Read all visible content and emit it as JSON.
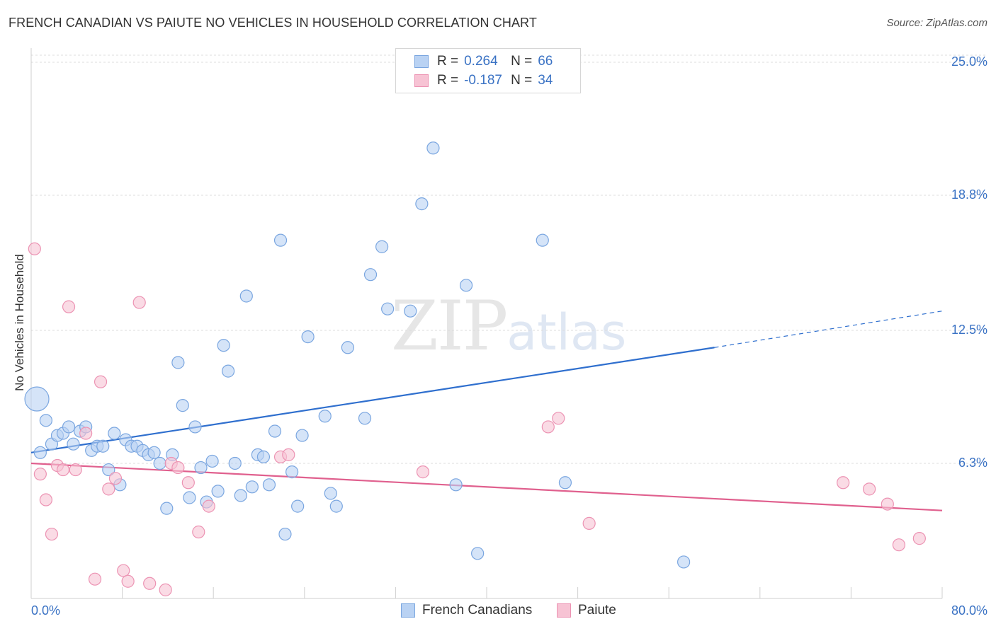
{
  "header": {
    "title": "FRENCH CANADIAN VS PAIUTE NO VEHICLES IN HOUSEHOLD CORRELATION CHART",
    "source": "Source: ZipAtlas.com"
  },
  "watermark": {
    "zip": "ZIP",
    "atlas": "atlas"
  },
  "legend_top": [
    {
      "r_label": "R =",
      "r_value": "0.264",
      "n_label": "N =",
      "n_value": "66"
    },
    {
      "r_label": "R =",
      "r_value": "-0.187",
      "n_label": "N =",
      "n_value": "34"
    }
  ],
  "legend_bottom": [
    "French Canadians",
    "Paiute"
  ],
  "colors": {
    "blue_fill": "#b9d2f3",
    "blue_stroke": "#7aa6e0",
    "blue_line": "#2f6fce",
    "pink_fill": "#f7c3d4",
    "pink_stroke": "#ec93b3",
    "pink_line": "#e0608e",
    "tick_text": "#3a72c4",
    "grid": "#dcdcdc"
  },
  "chart_data": {
    "type": "scatter",
    "title": "FRENCH CANADIAN VS PAIUTE NO VEHICLES IN HOUSEHOLD CORRELATION CHART",
    "xlabel": "",
    "ylabel": "No Vehicles in Household",
    "xlim": [
      0,
      80
    ],
    "ylim": [
      0,
      25
    ],
    "x_tick_labels": [
      "0.0%",
      "80.0%"
    ],
    "y_ticks": [
      6.3,
      12.5,
      18.8,
      25.0
    ],
    "y_tick_labels": [
      "6.3%",
      "12.5%",
      "18.8%",
      "25.0%"
    ],
    "series": [
      {
        "name": "French Canadians",
        "color": "#b9d2f3",
        "r": 0.264,
        "n": 66,
        "trend": {
          "x0": 0,
          "y0": 6.8,
          "x1": 60,
          "y1": 11.7,
          "dash_x1": 80,
          "dash_y1": 13.4
        },
        "points": [
          [
            0.5,
            9.3,
            "large"
          ],
          [
            0.8,
            6.8
          ],
          [
            1.3,
            8.3
          ],
          [
            1.8,
            7.2
          ],
          [
            2.3,
            7.6
          ],
          [
            2.8,
            7.7
          ],
          [
            3.3,
            8.0
          ],
          [
            3.7,
            7.2
          ],
          [
            4.3,
            7.8
          ],
          [
            4.8,
            8.0
          ],
          [
            5.3,
            6.9
          ],
          [
            5.8,
            7.1
          ],
          [
            6.3,
            7.1
          ],
          [
            6.8,
            6.0
          ],
          [
            7.3,
            7.7
          ],
          [
            7.8,
            5.3
          ],
          [
            8.3,
            7.4
          ],
          [
            8.8,
            7.1
          ],
          [
            9.3,
            7.1
          ],
          [
            9.8,
            6.9
          ],
          [
            10.3,
            6.7
          ],
          [
            10.8,
            6.8
          ],
          [
            11.3,
            6.3
          ],
          [
            11.9,
            4.2
          ],
          [
            12.4,
            6.7
          ],
          [
            12.9,
            11.0
          ],
          [
            13.3,
            9.0
          ],
          [
            13.9,
            4.7
          ],
          [
            14.4,
            8.0
          ],
          [
            14.9,
            6.1
          ],
          [
            15.4,
            4.5
          ],
          [
            15.9,
            6.4
          ],
          [
            16.4,
            5.0
          ],
          [
            16.9,
            11.8
          ],
          [
            17.3,
            10.6
          ],
          [
            17.9,
            6.3
          ],
          [
            18.4,
            4.8
          ],
          [
            18.9,
            14.1
          ],
          [
            19.4,
            5.2
          ],
          [
            19.9,
            6.7
          ],
          [
            20.4,
            6.6
          ],
          [
            20.9,
            5.3
          ],
          [
            21.4,
            7.8
          ],
          [
            21.9,
            16.7
          ],
          [
            22.3,
            3.0
          ],
          [
            22.9,
            5.9
          ],
          [
            23.4,
            4.3
          ],
          [
            23.8,
            7.6
          ],
          [
            24.3,
            12.2
          ],
          [
            25.8,
            8.5
          ],
          [
            26.3,
            4.9
          ],
          [
            26.8,
            4.3
          ],
          [
            27.8,
            11.7
          ],
          [
            29.3,
            8.4
          ],
          [
            29.8,
            15.1
          ],
          [
            30.8,
            16.4
          ],
          [
            31.3,
            13.5
          ],
          [
            33.3,
            13.4
          ],
          [
            34.3,
            18.4
          ],
          [
            35.3,
            21.0
          ],
          [
            37.3,
            5.3
          ],
          [
            38.2,
            14.6
          ],
          [
            39.2,
            2.1
          ],
          [
            44.9,
            16.7
          ],
          [
            46.9,
            5.4
          ],
          [
            57.3,
            1.7
          ]
        ]
      },
      {
        "name": "Paiute",
        "color": "#f7c3d4",
        "r": -0.187,
        "n": 34,
        "trend": {
          "x0": 0,
          "y0": 6.3,
          "x1": 80,
          "y1": 4.1
        },
        "points": [
          [
            0.3,
            16.3
          ],
          [
            0.8,
            5.8
          ],
          [
            1.3,
            4.6
          ],
          [
            1.8,
            3.0
          ],
          [
            2.3,
            6.2
          ],
          [
            2.8,
            6.0
          ],
          [
            3.3,
            13.6
          ],
          [
            3.9,
            6.0
          ],
          [
            4.8,
            7.7
          ],
          [
            5.6,
            0.9
          ],
          [
            6.1,
            10.1
          ],
          [
            6.8,
            5.1
          ],
          [
            7.4,
            5.6
          ],
          [
            8.1,
            1.3
          ],
          [
            8.5,
            0.8
          ],
          [
            9.5,
            13.8
          ],
          [
            10.4,
            0.7
          ],
          [
            11.8,
            0.4
          ],
          [
            12.3,
            6.3
          ],
          [
            12.9,
            6.1
          ],
          [
            13.8,
            5.4
          ],
          [
            14.7,
            3.1
          ],
          [
            15.6,
            4.3
          ],
          [
            21.9,
            6.6
          ],
          [
            22.6,
            6.7
          ],
          [
            34.4,
            5.9
          ],
          [
            45.4,
            8.0
          ],
          [
            46.3,
            8.4
          ],
          [
            49.0,
            3.5
          ],
          [
            71.3,
            5.4
          ],
          [
            73.6,
            5.1
          ],
          [
            75.2,
            4.4
          ],
          [
            76.2,
            2.5
          ],
          [
            78.0,
            2.8
          ]
        ]
      }
    ]
  }
}
